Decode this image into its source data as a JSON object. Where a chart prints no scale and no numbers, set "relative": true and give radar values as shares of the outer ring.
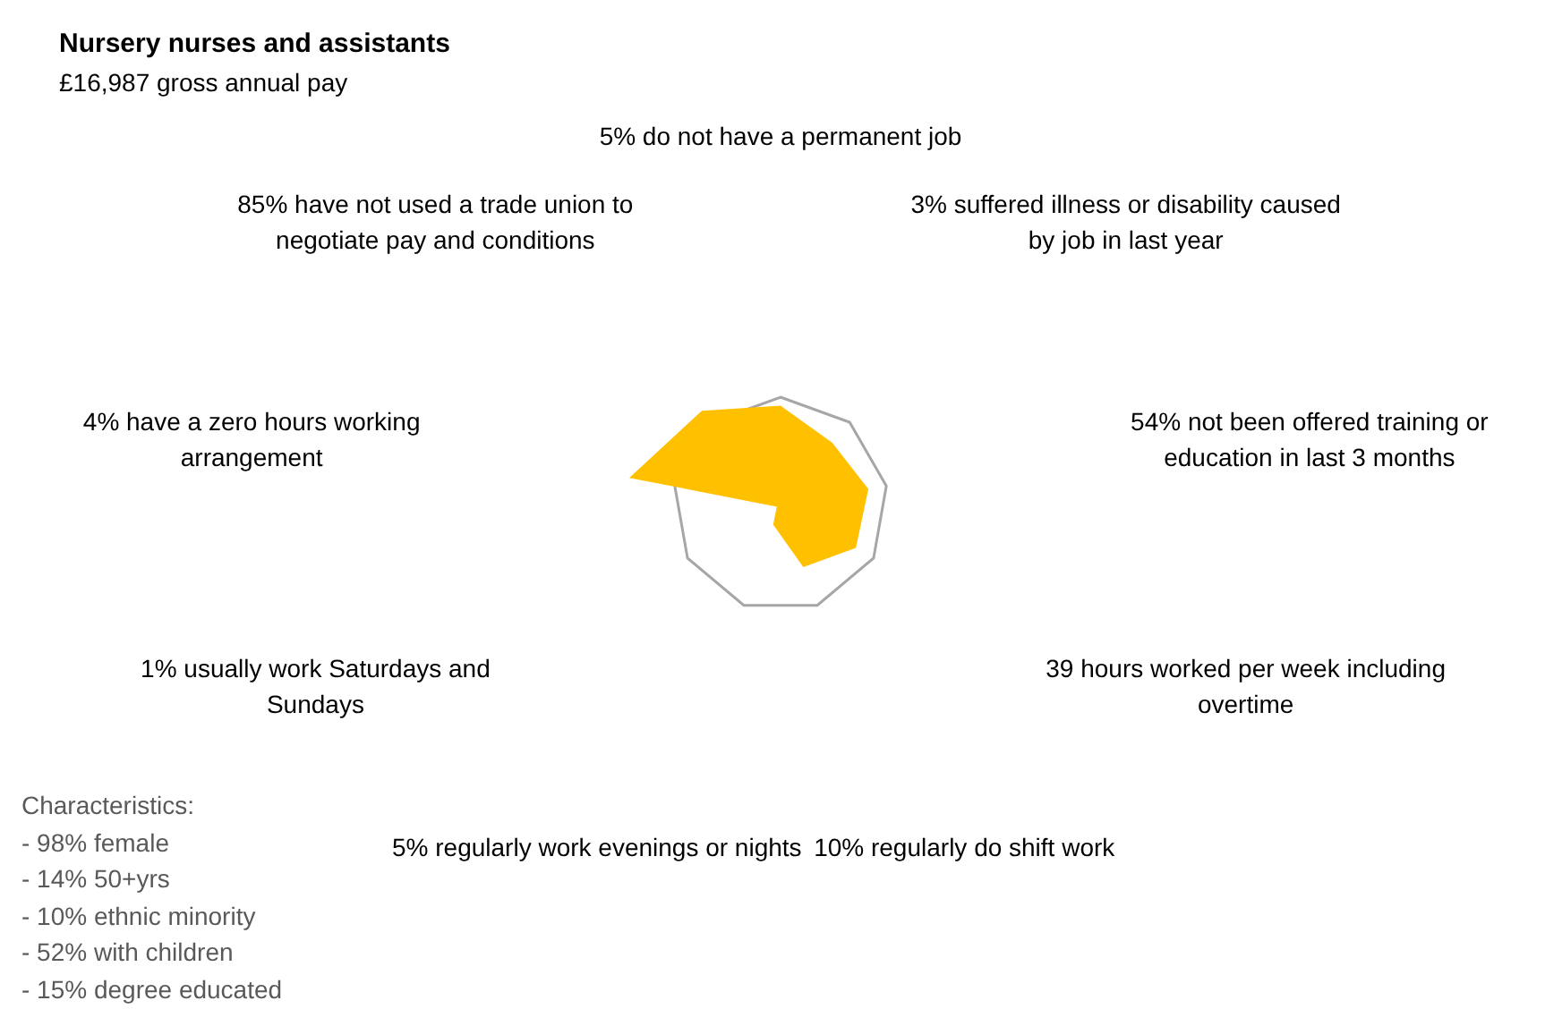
{
  "chart_data": {
    "type": "radar",
    "title": "Nursery nurses and assistants",
    "subtitle": "£16,987 gross annual pay",
    "categories": [
      "5% do not have a permanent job",
      "3% suffered illness or disability caused by job in last year",
      "54% not been offered training or education in last 3 months",
      "39 hours worked per week including overtime",
      "10% regularly do shift work",
      "5% regularly work evenings or nights",
      "1% usually work Saturdays and Sundays",
      "4% have a zero hours working arrangement",
      "85% have not used a trade union to negotiate pay and conditions"
    ],
    "relative": true,
    "series": [
      {
        "color": "#ffc000",
        "values": [
          0.92,
          0.75,
          0.83,
          0.81,
          0.62,
          0.2,
          0.04,
          1.43,
          1.14
        ]
      }
    ],
    "annotations": [
      "Characteristics:",
      "- 98% female",
      "- 14% 50+yrs",
      "- 10% ethnic minority",
      "- 52% with children",
      "- 15% degree educated"
    ],
    "legend": false
  }
}
